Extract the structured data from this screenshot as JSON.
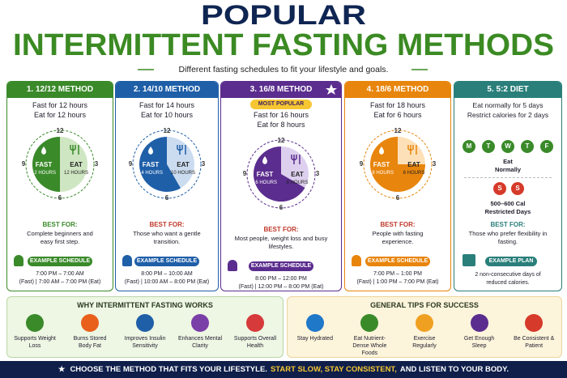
{
  "header": {
    "title_line1": "POPULAR",
    "title_line2": "INTERMITTENT FASTING METHODS",
    "subtitle": "Different fasting schedules to fit your lifestyle and goals."
  },
  "clock_numbers": [
    "12",
    "3",
    "6",
    "9"
  ],
  "methods": [
    {
      "title": "1. 12/12 METHOD",
      "lines": [
        "Fast for 12 hours",
        "Eat for 12 hours"
      ],
      "fast_label": "FAST",
      "fast_hours": "12 HOURS",
      "eat_label": "EAT",
      "eat_hours": "12 HOURS",
      "best_for_label": "BEST FOR:",
      "best_for": "Complete beginners and easy first step.",
      "schedule_label": "EXAMPLE SCHEDULE",
      "schedule": [
        "7:00 PM – 7:00 AM",
        "(Fast) | 7:00 AM – 7:00 PM (Eat)"
      ]
    },
    {
      "title": "2. 14/10 METHOD",
      "lines": [
        "Fast for 14 hours",
        "Eat for 10 hours"
      ],
      "fast_label": "FAST",
      "fast_hours": "14 HOURS",
      "eat_label": "EAT",
      "eat_hours": "10 HOURS",
      "best_for_label": "BEST FOR:",
      "best_for": "Those who want a gentle transition.",
      "schedule_label": "EXAMPLE SCHEDULE",
      "schedule": [
        "8:00 PM – 10:00 AM",
        "(Fast) | 10:00 AM – 8:00 PM (Eat)"
      ]
    },
    {
      "title": "3. 16/8 METHOD",
      "badge": "MOST POPULAR",
      "lines": [
        "Fast for 16 hours",
        "Eat for 8 hours"
      ],
      "fast_label": "FAST",
      "fast_hours": "16 HOURS",
      "eat_label": "EAT",
      "eat_hours": "8 HOURS",
      "best_for_label": "BEST FOR:",
      "best_for": "Most people, weight loss and busy lifestyles.",
      "schedule_label": "EXAMPLE SCHEDULE",
      "schedule": [
        "8:00 PM – 12:00 PM",
        "(Fast) | 12:00 PM – 8:00 PM (Eat)"
      ]
    },
    {
      "title": "4. 18/6 METHOD",
      "lines": [
        "Fast for 18 hours",
        "Eat for 6 hours"
      ],
      "fast_label": "FAST",
      "fast_hours": "18 HOURS",
      "eat_label": "EAT",
      "eat_hours": "6 HOURS",
      "best_for_label": "BEST FOR:",
      "best_for": "People with fasting experience.",
      "schedule_label": "EXAMPLE SCHEDULE",
      "schedule": [
        "7:00 PM – 1:00 PM",
        "(Fast) | 1:00 PM – 7:00 PM (Eat)"
      ]
    }
  ],
  "diet": {
    "title": "5. 5:2 DIET",
    "lines": [
      "Eat normally for 5 days",
      "Restrict calories for 2 days"
    ],
    "normal_days": [
      "M",
      "T",
      "W",
      "T",
      "F"
    ],
    "normal_label": "Eat Normally",
    "restricted_days": [
      "S",
      "S"
    ],
    "restricted_label": "500–600 Cal Restricted Days",
    "best_for_label": "BEST FOR:",
    "best_for": "Those who prefer flexibility in fasting.",
    "plan_label": "EXAMPLE PLAN",
    "plan": "2 non-consecutive days of reduced calories."
  },
  "why": {
    "title": "WHY INTERMITTENT FASTING WORKS",
    "items": [
      "Supports Weight Loss",
      "Burns Stored Body Fat",
      "Improves Insulin Sensitivity",
      "Enhances Mental Clarity",
      "Supports Overall Health"
    ]
  },
  "tips": {
    "title": "GENERAL TIPS FOR SUCCESS",
    "items": [
      "Stay Hydrated",
      "Eat Nutrient-Dense Whole Foods",
      "Exercise Regularly",
      "Get Enough Sleep",
      "Be Consistent & Patient"
    ]
  },
  "footer": {
    "part1": "CHOOSE THE METHOD THAT FITS YOUR LIFESTYLE.",
    "part2": "START SLOW, STAY CONSISTENT,",
    "part3": "AND LISTEN TO YOUR BODY."
  }
}
